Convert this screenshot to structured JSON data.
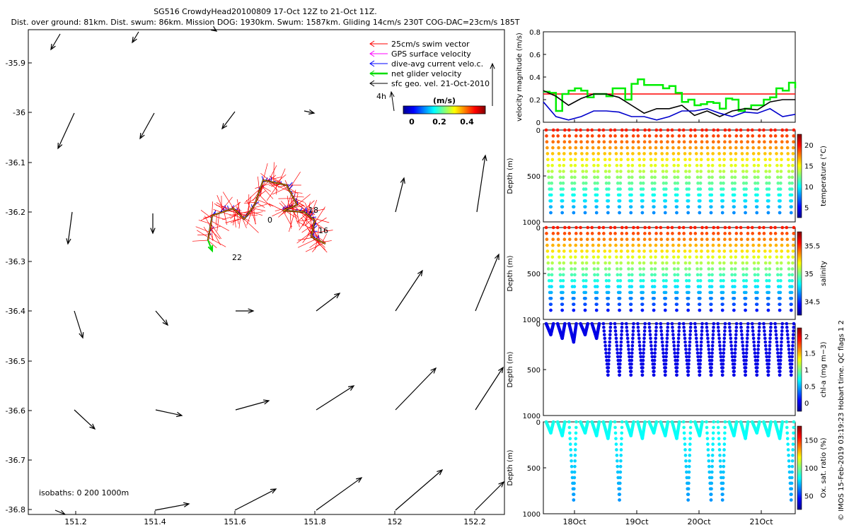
{
  "title": {
    "line1": "SG516 CrowdyHead20100809 17-Oct 12Z to 21-Oct 11Z.",
    "line2": "Dist. over ground: 81km. Dist. swum: 86km. Mission DOG: 1930km. Swum: 1587km. Gliding 14cm/s 230T COG-DAC=23cm/s 185T"
  },
  "map_panel": {
    "y_ticks": [
      "-35.9",
      "-36",
      "-36.1",
      "-36.2",
      "-36.3",
      "-36.4",
      "-36.5",
      "-36.6",
      "-36.7",
      "-36.8"
    ],
    "x_ticks": [
      "151.2",
      "151.4",
      "151.6",
      "151.8",
      "152",
      "152.2"
    ],
    "legend": [
      {
        "label": "25cm/s swim vector",
        "color": "#ff0000"
      },
      {
        "label": "GPS surface velocity",
        "color": "#ff00ff"
      },
      {
        "label": "dive-avg current velo.c.",
        "color": "#0000ff"
      },
      {
        "label": "net glider velocity",
        "color": "#00dd00"
      },
      {
        "label": "sfc geo. vel. 21-Oct-2010",
        "color": "#000000"
      }
    ],
    "arrow_scale_label": "4h",
    "colorbar_title": "(m/s)",
    "colorbar_ticks": [
      "0",
      "0.2",
      "0.4"
    ],
    "isobaths_label": "isobaths: 0   200  1000m",
    "track_labels": [
      "0",
      "18",
      "16",
      "22"
    ]
  },
  "chart_data": [
    {
      "type": "line",
      "name": "velocity",
      "ylabel": "velocity magnitude (m/s)",
      "ylim": [
        0,
        0.8
      ],
      "y_ticks": [
        "0",
        "0.2",
        "0.4",
        "0.6",
        "0.8"
      ],
      "x_ticks": [
        "18Oct",
        "19Oct",
        "20Oct",
        "21Oct"
      ],
      "x_range": [
        "17-Oct 12Z",
        "21-Oct 11Z"
      ],
      "series": [
        {
          "color": "#ff0000",
          "x": [
            0,
            4
          ],
          "y": [
            0.25,
            0.25
          ]
        },
        {
          "color": "#00ee00",
          "x": [
            0,
            0.1,
            0.2,
            0.3,
            0.4,
            0.5,
            0.6,
            0.7,
            0.8,
            0.9,
            1.0,
            1.1,
            1.2,
            1.3,
            1.4,
            1.5,
            1.6,
            1.7,
            1.8,
            1.9,
            2.0,
            2.1,
            2.2,
            2.3,
            2.4,
            2.5,
            2.6,
            2.7,
            2.8,
            2.9,
            3.0,
            3.1,
            3.2,
            3.3,
            3.4,
            3.5,
            3.6,
            3.7,
            3.8,
            3.9,
            4.0
          ],
          "y": [
            0.27,
            0.26,
            0.1,
            0.25,
            0.28,
            0.3,
            0.28,
            0.22,
            0.25,
            0.25,
            0.23,
            0.3,
            0.3,
            0.2,
            0.34,
            0.38,
            0.33,
            0.33,
            0.33,
            0.3,
            0.32,
            0.26,
            0.18,
            0.2,
            0.15,
            0.16,
            0.18,
            0.17,
            0.12,
            0.21,
            0.2,
            0.1,
            0.12,
            0.15,
            0.15,
            0.2,
            0.22,
            0.3,
            0.28,
            0.35,
            0.3
          ]
        },
        {
          "color": "#000000",
          "x": [
            0,
            0.2,
            0.4,
            0.6,
            0.8,
            1.0,
            1.2,
            1.4,
            1.6,
            1.8,
            2.0,
            2.2,
            2.4,
            2.6,
            2.8,
            3.0,
            3.2,
            3.4,
            3.6,
            3.8,
            4.0
          ],
          "y": [
            0.28,
            0.23,
            0.15,
            0.21,
            0.25,
            0.25,
            0.22,
            0.15,
            0.08,
            0.12,
            0.12,
            0.15,
            0.06,
            0.1,
            0.05,
            0.1,
            0.12,
            0.11,
            0.18,
            0.2,
            0.2
          ]
        },
        {
          "color": "#0000cc",
          "x": [
            0,
            0.2,
            0.4,
            0.6,
            0.8,
            1.0,
            1.2,
            1.4,
            1.6,
            1.8,
            2.0,
            2.2,
            2.4,
            2.6,
            2.8,
            3.0,
            3.2,
            3.4,
            3.6,
            3.8,
            4.0
          ],
          "y": [
            0.18,
            0.05,
            0.02,
            0.05,
            0.1,
            0.1,
            0.09,
            0.05,
            0.05,
            0.02,
            0.05,
            0.1,
            0.1,
            0.12,
            0.08,
            0.05,
            0.09,
            0.08,
            0.12,
            0.05,
            0.07
          ]
        }
      ]
    },
    {
      "type": "scatter",
      "name": "temperature",
      "ylabel": "Depth (m)",
      "ylim": [
        1000,
        0
      ],
      "y_ticks": [
        "0",
        "500",
        "1000"
      ],
      "colorbar_label": "temperature (°C)",
      "colorbar_ticks": [
        "5",
        "10",
        "15",
        "20"
      ],
      "dives": 22,
      "max_depth": 900
    },
    {
      "type": "scatter",
      "name": "salinity",
      "ylabel": "Depth (m)",
      "ylim": [
        1000,
        0
      ],
      "y_ticks": [
        "0",
        "500",
        "1000"
      ],
      "colorbar_label": "salinity",
      "colorbar_ticks": [
        "34.5",
        "35",
        "35.5"
      ],
      "dives": 22,
      "max_depth": 900
    },
    {
      "type": "scatter",
      "name": "chl-a",
      "ylabel": "Depth (m)",
      "ylim": [
        1000,
        0
      ],
      "y_ticks": [
        "0",
        "500",
        "1000"
      ],
      "colorbar_label": "chl-a (mg m−3)",
      "colorbar_ticks": [
        "0",
        "0.5",
        "1",
        "1.5",
        "2"
      ],
      "dives": 22,
      "max_depth": 560
    },
    {
      "type": "scatter",
      "name": "oxygen",
      "ylabel": "Depth (m)",
      "ylim": [
        1000,
        0
      ],
      "y_ticks": [
        "0",
        "500",
        "1000"
      ],
      "colorbar_label": "Ox. sat. ratio (%)",
      "colorbar_ticks": [
        "50",
        "100",
        "150"
      ],
      "x_ticks": [
        "18Oct",
        "19Oct",
        "20Oct",
        "21Oct"
      ],
      "dives": 22,
      "max_depth": 880
    }
  ],
  "footer_credit": "© IMOS 15-Feb-2019 03:19:23 Hobart time. QC flags 1  2"
}
